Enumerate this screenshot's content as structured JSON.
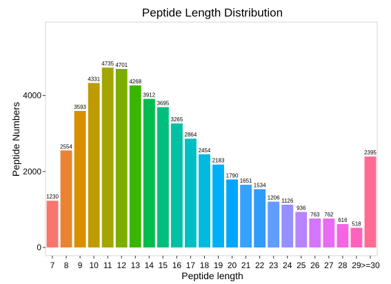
{
  "chart_data": {
    "type": "bar",
    "title": "Peptide Length Distribution",
    "xlabel": "Peptide length",
    "ylabel": "Peptide Numbers",
    "categories": [
      "7",
      "8",
      "9",
      "10",
      "11",
      "12",
      "13",
      "14",
      "15",
      "16",
      "17",
      "18",
      "19",
      "20",
      "21",
      "22",
      "23",
      "24",
      "25",
      "26",
      "27",
      "28",
      "29",
      ">=30"
    ],
    "values": [
      1230,
      2554,
      3593,
      4331,
      4735,
      4701,
      4268,
      3912,
      3695,
      3265,
      2864,
      2454,
      2183,
      1790,
      1651,
      1534,
      1206,
      1126,
      936,
      763,
      762,
      616,
      518,
      2395
    ],
    "colors": [
      "#F8766D",
      "#EA8331",
      "#D89000",
      "#C09B00",
      "#A3A500",
      "#7CAE00",
      "#39B600",
      "#00BB4E",
      "#00BF7D",
      "#00C1A3",
      "#00BFC4",
      "#00BAE0",
      "#00B0F6",
      "#00A5FF",
      "#35A2FF",
      "#2F9BFA",
      "#619CFF",
      "#9590FF",
      "#B983FF",
      "#D575FE",
      "#E76BF3",
      "#F564E3",
      "#FF62BC",
      "#FF6C91"
    ],
    "yticks": [
      0,
      2000,
      4000
    ],
    "ylim": [
      0,
      5000
    ],
    "grid": false,
    "legend": "none"
  }
}
